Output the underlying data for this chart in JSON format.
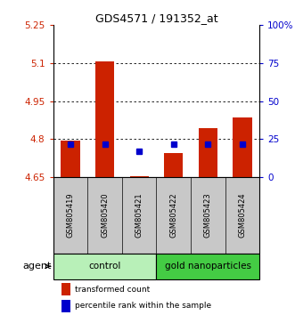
{
  "title": "GDS4571 / 191352_at",
  "samples": [
    "GSM805419",
    "GSM805420",
    "GSM805421",
    "GSM805422",
    "GSM805423",
    "GSM805424"
  ],
  "transformed_counts": [
    4.795,
    5.108,
    4.655,
    4.745,
    4.845,
    4.885
  ],
  "percentile_ranks": [
    22,
    22,
    17,
    22,
    22,
    22
  ],
  "y_min": 4.65,
  "y_max": 5.25,
  "y_ticks": [
    4.65,
    4.8,
    4.95,
    5.1,
    5.25
  ],
  "y_tick_labels": [
    "4.65",
    "4.8",
    "4.95",
    "5.1",
    "5.25"
  ],
  "right_y_ticks": [
    0,
    25,
    50,
    75,
    100
  ],
  "right_y_tick_labels": [
    "0",
    "25",
    "50",
    "75",
    "100%"
  ],
  "bar_color": "#CC2200",
  "dot_color": "#0000CC",
  "bar_width": 0.55,
  "dot_size": 18,
  "legend_red": "transformed count",
  "legend_blue": "percentile rank within the sample",
  "bg_color_sample": "#C8C8C8",
  "ctrl_color": "#B8F0B8",
  "gold_color": "#44CC44",
  "left_axis_color": "#CC2200",
  "right_axis_color": "#0000CC",
  "figsize": [
    3.31,
    3.54
  ],
  "dpi": 100
}
